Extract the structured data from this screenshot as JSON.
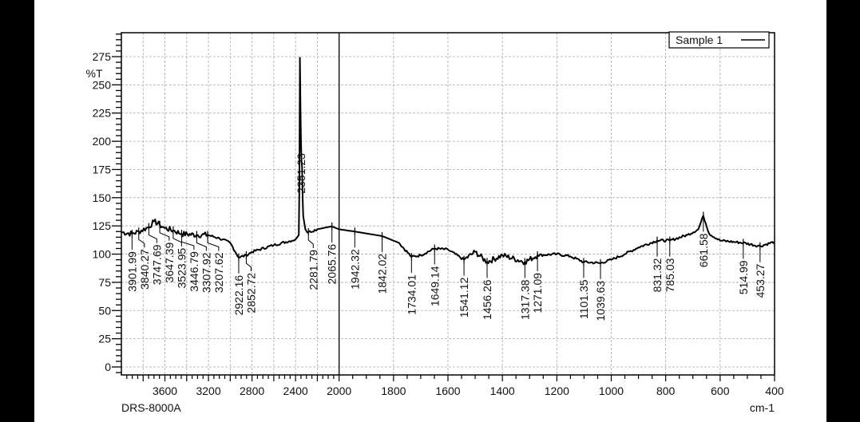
{
  "chart_data": {
    "type": "line",
    "title": "",
    "instrument": "DRS-8000A",
    "xlabel": "cm-1",
    "ylabel": "%T",
    "xlim": [
      4000,
      400
    ],
    "x_scale_break": 2000,
    "ylim": [
      -7,
      296
    ],
    "grid": true,
    "legend": {
      "placement": "top-right",
      "entries": [
        "Sample 1"
      ]
    },
    "x_ticks": [
      3600,
      3200,
      2800,
      2400,
      2000,
      1800,
      1600,
      1400,
      1200,
      1000,
      800,
      600,
      400
    ],
    "y_ticks": [
      0,
      25,
      50,
      75,
      100,
      125,
      150,
      175,
      200,
      225,
      250,
      275
    ],
    "series": [
      {
        "name": "Sample 1",
        "x": [
          4000,
          3901.99,
          3840.27,
          3747.69,
          3700,
          3647.39,
          3600,
          3523.95,
          3446.79,
          3307.92,
          3207.62,
          3100,
          3000,
          2922.16,
          2852.72,
          2800,
          2600,
          2400,
          2370,
          2365,
          2360,
          2355,
          2351.23,
          2345,
          2340,
          2335,
          2330,
          2310,
          2290,
          2281.79,
          2200,
          2100,
          2065.76,
          2000,
          1942.32,
          1842.02,
          1780,
          1734.01,
          1700,
          1649.14,
          1600,
          1541.12,
          1500,
          1456.26,
          1400,
          1317.38,
          1271.09,
          1200,
          1150,
          1101.35,
          1039.63,
          1000,
          950,
          900,
          831.32,
          785.03,
          720,
          680,
          661.58,
          640,
          600,
          514.99,
          453.27,
          400
        ],
        "y": [
          119.5,
          118,
          120,
          124,
          129,
          126,
          123,
          121,
          118,
          117,
          117,
          114,
          110,
          97,
          99,
          102,
          108,
          113,
          117,
          160,
          274,
          230,
          205,
          182,
          177,
          150,
          134,
          122,
          119,
          119.5,
          122,
          124,
          124.5,
          122,
          120,
          116,
          110,
          97.5,
          99,
          105,
          104,
          95,
          102,
          93,
          99,
          93,
          99,
          100,
          98,
          93,
          92,
          95,
          100,
          106,
          112,
          112,
          117,
          122,
          134,
          118,
          112,
          110,
          107,
          111
        ]
      }
    ],
    "peak_labels": [
      "3901.99",
      "3840.27",
      "3747.69",
      "3647.39",
      "3523.95",
      "3446.79",
      "3307.92",
      "3207.62",
      "2922.16",
      "2852.72",
      "2351.23",
      "2281.79",
      "2065.76",
      "1942.32",
      "1842.02",
      "1734.01",
      "1649.14",
      "1541.12",
      "1456.26",
      "1317.38",
      "1271.09",
      "1101.35",
      "1039.63",
      "831.32",
      "785.03",
      "661.58",
      "514.99",
      "453.27"
    ]
  }
}
